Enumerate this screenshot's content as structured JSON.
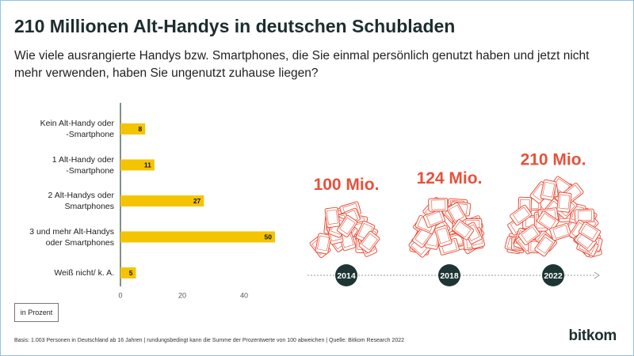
{
  "header": {
    "title": "210 Millionen Alt-Handys in deutschen Schubladen",
    "subtitle": "Wie viele ausrangierte Handys bzw. Smartphones, die Sie einmal persönlich genutzt haben und jetzt nicht mehr verwenden, haben Sie ungenutzt zuhause liegen?"
  },
  "chart_data": [
    {
      "type": "bar",
      "orientation": "horizontal",
      "categories": [
        "Kein Alt-Handy oder\n-Smartphone",
        "1 Alt-Handy oder\n-Smartphone",
        "2 Alt-Handys oder\nSmartphones",
        "3 und mehr Alt-Handys\noder Smartphones",
        "Weiß nicht/ k. A."
      ],
      "values": [
        8,
        11,
        27,
        50,
        5
      ],
      "color": "#f5c400",
      "xlim": [
        0,
        50
      ],
      "xticks": [
        0,
        20,
        40
      ],
      "unit_note": "in Prozent"
    },
    {
      "type": "pictogram",
      "categories": [
        "2014",
        "2018",
        "2022"
      ],
      "values": [
        100,
        124,
        210
      ],
      "value_labels": [
        "100 Mio.",
        "124 Mio.",
        "210 Mio."
      ],
      "color": "#e8503a"
    }
  ],
  "footer": {
    "source": "Basis: 1.003 Personen in Deutschland ab 16 Jahren | rundungsbedingt kann die Summe der Prozentwerte von 100 abweichen | Quelle: Bitkom Research 2022",
    "logo": "bitkom"
  }
}
